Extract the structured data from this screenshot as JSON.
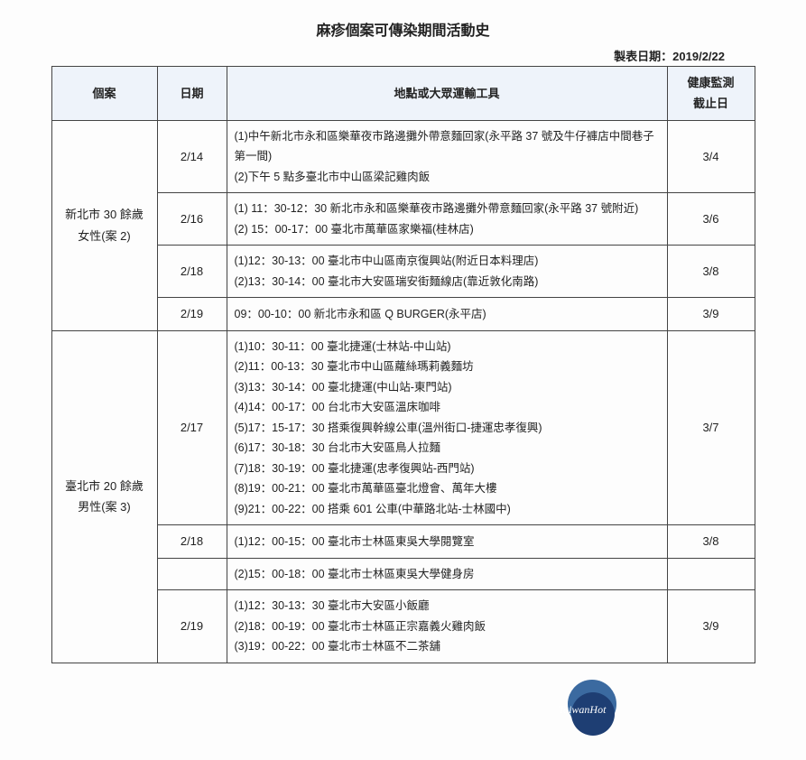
{
  "title": "麻疹個案可傳染期間活動史",
  "report_date_label": "製表日期：2019/2/22",
  "columns": {
    "case": "個案",
    "date": "日期",
    "location": "地點或大眾運輸工具",
    "end": "健康監測\n截止日"
  },
  "cases": [
    {
      "label": "新北市 30 餘歲\n女性(案 2)",
      "rows": [
        {
          "date": "2/14",
          "loc": "(1)中午新北市永和區樂華夜市路邊攤外帶意麵回家(永平路 37 號及牛仔褲店中間巷子第一間)\n(2)下午 5 點多臺北市中山區梁記雞肉飯",
          "end": "3/4"
        },
        {
          "date": "2/16",
          "loc": "(1) 11：30-12：30 新北市永和區樂華夜市路邊攤外帶意麵回家(永平路 37 號附近)\n(2) 15：00-17：00 臺北市萬華區家樂福(桂林店)",
          "end": "3/6"
        },
        {
          "date": "2/18",
          "loc": "(1)12：30-13：00 臺北市中山區南京復興站(附近日本料理店)\n(2)13：30-14：00 臺北市大安區瑞安街麵線店(靠近敦化南路)",
          "end": "3/8"
        },
        {
          "date": "2/19",
          "loc": "09：00-10：00 新北市永和區 Q BURGER(永平店)",
          "end": "3/9"
        }
      ]
    },
    {
      "label": "臺北市 20 餘歲\n男性(案 3)",
      "rows": [
        {
          "date": "2/17",
          "loc": "(1)10：30-11：00 臺北捷運(士林站-中山站)\n(2)11：00-13：30 臺北市中山區蘿絲瑪莉義麵坊\n(3)13：30-14：00 臺北捷運(中山站-東門站)\n(4)14：00-17：00 台北市大安區溫床咖啡\n(5)17：15-17：30 搭乘復興幹線公車(溫州街口-捷運忠孝復興)\n(6)17：30-18：30 台北市大安區鳥人拉麵\n(7)18：30-19：00 臺北捷運(忠孝復興站-西門站)\n(8)19：00-21：00 臺北市萬華區臺北燈會、萬年大樓\n(9)21：00-22：00 搭乘 601 公車(中華路北站-士林國中)",
          "end": "3/7"
        },
        {
          "date": "2/18",
          "loc": "(1)12：00-15：00 臺北市士林區東吳大學閱覽室",
          "end": "3/8"
        },
        {
          "date": "",
          "loc": "(2)15：00-18：00 臺北市士林區東吳大學健身房",
          "end": ""
        },
        {
          "date": "2/19",
          "loc": "(1)12：30-13：30 臺北市大安區小飯廳\n(2)18：00-19：00 臺北市士林區正宗嘉義火雞肉飯\n(3)19：00-22：00 臺北市士林區不二茶舖",
          "end": "3/9"
        }
      ]
    }
  ],
  "logo_text": "TaiwanHot",
  "colors": {
    "header_bg": "#eef3fa",
    "border": "#444444",
    "logo_light": "#3b6aa0",
    "logo_dark": "#1e3e73"
  }
}
